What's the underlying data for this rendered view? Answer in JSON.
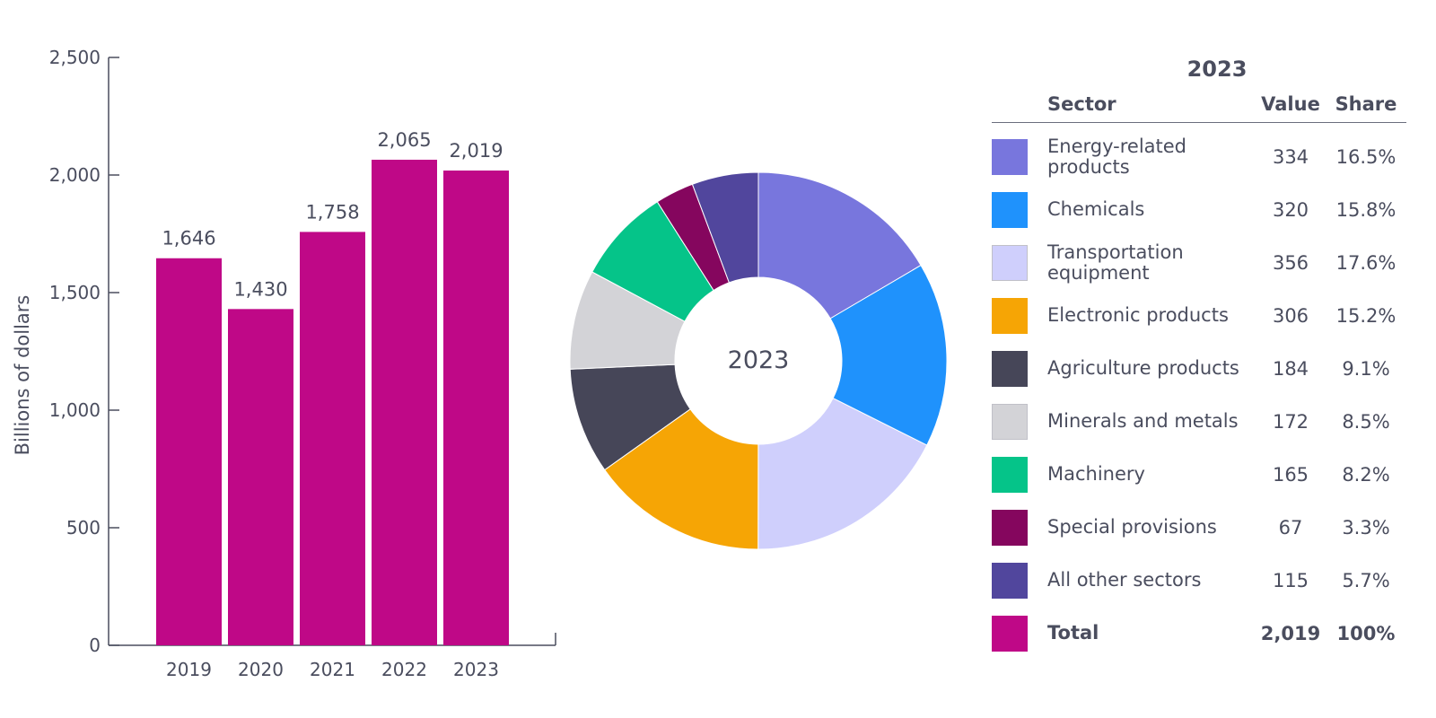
{
  "chart_data": [
    {
      "type": "bar",
      "title": "",
      "xlabel": "",
      "ylabel": "Billions of dollars",
      "ylim": [
        0,
        2500
      ],
      "yticks": [
        0,
        500,
        1000,
        1500,
        2000,
        2500
      ],
      "ytick_labels": [
        "0",
        "500",
        "1,000",
        "1,500",
        "2,000",
        "2,500"
      ],
      "categories": [
        "2019",
        "2020",
        "2021",
        "2022",
        "2023"
      ],
      "values": [
        1646,
        1430,
        1758,
        2065,
        2019
      ],
      "value_labels": [
        "1,646",
        "1,430",
        "1,758",
        "2,065",
        "2,019"
      ],
      "color": "#bf0887",
      "grid": false
    },
    {
      "type": "pie",
      "donut": true,
      "center_label": "2023",
      "labels": [
        "Energy-related products",
        "Chemicals",
        "Transportation equipment",
        "Electronic products",
        "Agriculture products",
        "Minerals and metals",
        "Machinery",
        "Special provisions",
        "All other sectors"
      ],
      "values": [
        334,
        320,
        356,
        306,
        184,
        172,
        165,
        67,
        115
      ],
      "colors": [
        "#7876dd",
        "#1f92fc",
        "#cfcffc",
        "#f6a505",
        "#464658",
        "#d3d3d7",
        "#05c489",
        "#85065e",
        "#51469d"
      ]
    }
  ],
  "table": {
    "title": "2023",
    "headers": {
      "sector": "Sector",
      "value": "Value",
      "share": "Share"
    },
    "rows": [
      {
        "sector": "Energy-related products",
        "value": "334",
        "share": "16.5%",
        "color": "#7876dd"
      },
      {
        "sector": "Chemicals",
        "value": "320",
        "share": "15.8%",
        "color": "#1f92fc"
      },
      {
        "sector": "Transportation equipment",
        "value": "356",
        "share": "17.6%",
        "color": "#cfcffc"
      },
      {
        "sector": "Electronic products",
        "value": "306",
        "share": "15.2%",
        "color": "#f6a505"
      },
      {
        "sector": "Agriculture products",
        "value": "184",
        "share": "9.1%",
        "color": "#464658"
      },
      {
        "sector": "Minerals and metals",
        "value": "172",
        "share": "8.5%",
        "color": "#d3d3d7"
      },
      {
        "sector": "Machinery",
        "value": "165",
        "share": "8.2%",
        "color": "#05c489"
      },
      {
        "sector": "Special provisions",
        "value": "67",
        "share": "3.3%",
        "color": "#85065e"
      },
      {
        "sector": "All other sectors",
        "value": "115",
        "share": "5.7%",
        "color": "#51469d"
      }
    ],
    "total": {
      "sector": "Total",
      "value": "2,019",
      "share": "100%",
      "color": "#bf0887"
    }
  }
}
